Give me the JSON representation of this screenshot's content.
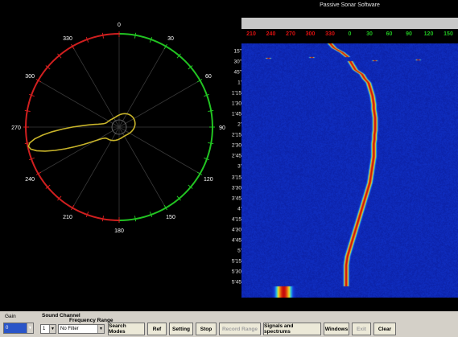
{
  "window": {
    "title": "Passive Sonar Software"
  },
  "polar": {
    "angle_labels": [
      "0",
      "30",
      "60",
      "90",
      "120",
      "150",
      "180",
      "210",
      "240",
      "270",
      "300",
      "330"
    ],
    "colors": {
      "starboard": "#22c322",
      "port": "#d01f1f",
      "trace": "#c8b42a"
    }
  },
  "waterfall": {
    "bearing_labels": [
      {
        "text": "210",
        "color": "#e01010"
      },
      {
        "text": "240",
        "color": "#e01010"
      },
      {
        "text": "270",
        "color": "#e01010"
      },
      {
        "text": "300",
        "color": "#e01010"
      },
      {
        "text": "330",
        "color": "#e01010"
      },
      {
        "text": "0",
        "color": "#20c020"
      },
      {
        "text": "30",
        "color": "#20c020"
      },
      {
        "text": "60",
        "color": "#20c020"
      },
      {
        "text": "90",
        "color": "#20c020"
      },
      {
        "text": "120",
        "color": "#20c020"
      },
      {
        "text": "150",
        "color": "#20c020"
      }
    ],
    "time_labels": [
      "15\"",
      "30\"",
      "45\"",
      "1'",
      "1'15",
      "1'30",
      "1'45",
      "2'",
      "2'15",
      "2'30",
      "2'45",
      "3'",
      "3'15",
      "3'30",
      "3'45",
      "4'",
      "4'15",
      "4'30",
      "4'45",
      "5'",
      "5'15",
      "5'30",
      "5'45"
    ],
    "trace_bearings_deg": [
      330,
      336,
      348,
      356,
      0,
      4,
      8,
      18,
      22,
      28,
      30,
      32,
      34,
      35,
      36,
      36,
      37,
      38,
      38,
      38,
      38,
      37,
      37,
      36,
      36,
      36,
      36,
      35,
      34,
      33,
      32,
      31,
      30,
      28,
      26,
      24,
      22,
      20,
      18,
      16,
      14,
      12,
      10,
      8,
      6,
      4,
      2,
      0,
      -2,
      -4,
      -5,
      -6,
      -6,
      -6,
      -6,
      -6,
      -6
    ]
  },
  "toolbar": {
    "gain_label": "Gain",
    "gain_value": "0",
    "sound_channel_label": "Sound Channel",
    "frequency_range_label": "Frequency Range",
    "channel_value": "1",
    "freq_value": "No Filter",
    "buttons": [
      {
        "label": "Search Modes",
        "disabled": false
      },
      {
        "label": "Ref",
        "disabled": false
      },
      {
        "label": "Setting",
        "disabled": false
      },
      {
        "label": "Stop",
        "disabled": false
      },
      {
        "label": "Record Range",
        "disabled": true
      },
      {
        "label": "Signals and spectrums",
        "disabled": false
      },
      {
        "label": "Windows",
        "disabled": false
      },
      {
        "label": "Exit",
        "disabled": true
      },
      {
        "label": "Clear",
        "disabled": false
      }
    ]
  }
}
